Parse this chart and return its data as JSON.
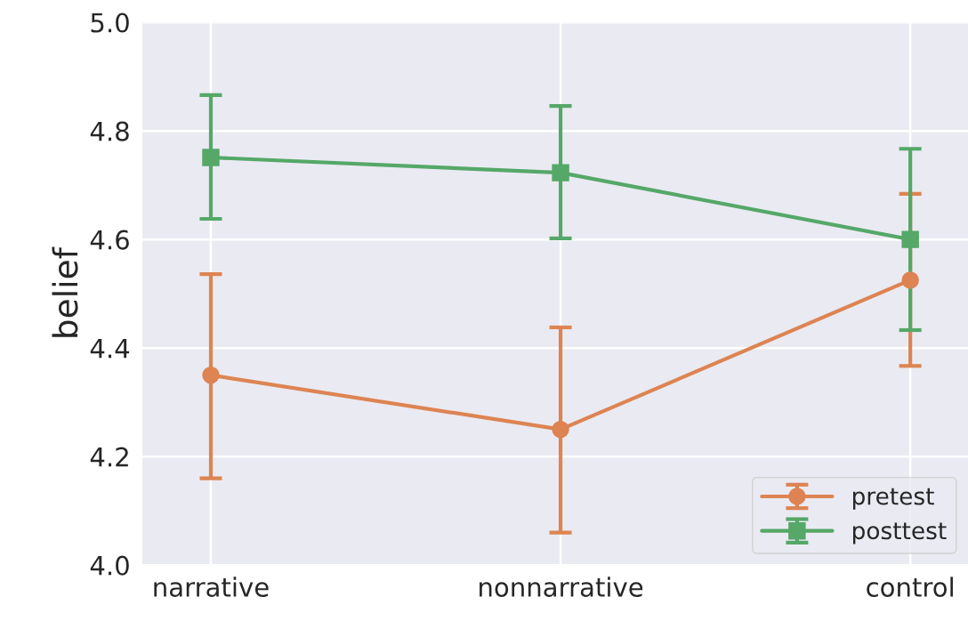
{
  "chart_data": {
    "type": "line",
    "ylabel": "belief",
    "categories": [
      "narrative",
      "nonnarrative",
      "control"
    ],
    "series": [
      {
        "name": "pretest",
        "color": "#dd8452",
        "marker": "circle",
        "values": [
          4.35,
          4.25,
          4.525
        ],
        "errors": [
          [
            4.16,
            4.536
          ],
          [
            4.06,
            4.438
          ],
          [
            4.367,
            4.684
          ]
        ]
      },
      {
        "name": "posttest",
        "color": "#55a868",
        "marker": "square",
        "values": [
          4.751,
          4.723,
          4.6
        ],
        "errors": [
          [
            4.638,
            4.866
          ],
          [
            4.602,
            4.846
          ],
          [
            4.433,
            4.767
          ]
        ]
      }
    ],
    "ylim": [
      4.0,
      5.0
    ],
    "yticks": [
      {
        "value": 4.0,
        "label": "4.0"
      },
      {
        "value": 4.2,
        "label": "4.2"
      },
      {
        "value": 4.4,
        "label": "4.4"
      },
      {
        "value": 4.6,
        "label": "4.6"
      },
      {
        "value": 4.8,
        "label": "4.8"
      },
      {
        "value": 5.0,
        "label": "5.0"
      }
    ],
    "grid": true,
    "legend": "bottom right"
  }
}
